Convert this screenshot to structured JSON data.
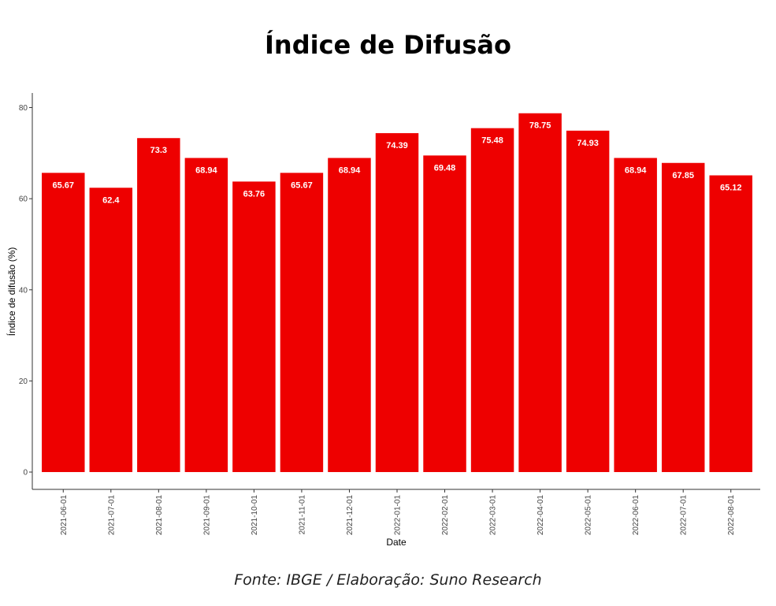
{
  "chart_data": {
    "type": "bar",
    "title": "Índice de Difusão",
    "xlabel": "Date",
    "ylabel": "Índice de difusão (%)",
    "source": "Fonte: IBGE / Elaboração: Suno Research",
    "ylim": [
      -3.8,
      83.2
    ],
    "yticks": [
      0,
      20,
      40,
      60,
      80
    ],
    "grid": false,
    "bar_color": "#ee0000",
    "categories": [
      "2021-06-01",
      "2021-07-01",
      "2021-08-01",
      "2021-09-01",
      "2021-10-01",
      "2021-11-01",
      "2021-12-01",
      "2022-01-01",
      "2022-02-01",
      "2022-03-01",
      "2022-04-01",
      "2022-05-01",
      "2022-06-01",
      "2022-07-01",
      "2022-08-01"
    ],
    "values": [
      65.67,
      62.4,
      73.3,
      68.94,
      63.76,
      65.67,
      68.94,
      74.39,
      69.48,
      75.48,
      78.75,
      74.93,
      68.94,
      67.85,
      65.12
    ],
    "labels": [
      "65.67",
      "62.4",
      "73.3",
      "68.94",
      "63.76",
      "65.67",
      "68.94",
      "74.39",
      "69.48",
      "75.48",
      "78.75",
      "74.93",
      "68.94",
      "67.85",
      "65.12"
    ]
  }
}
